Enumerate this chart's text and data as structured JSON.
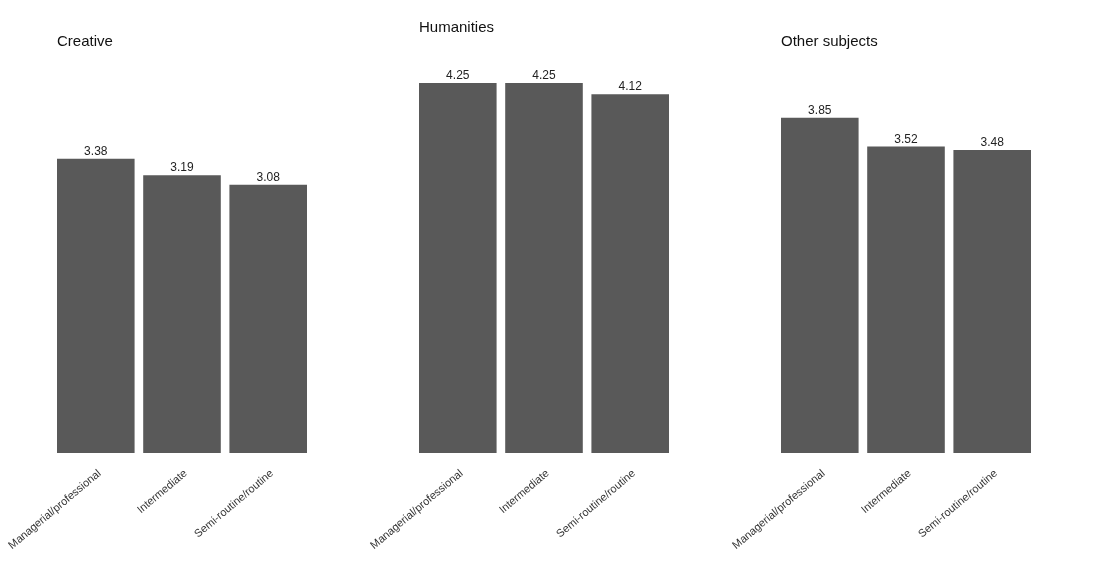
{
  "chart_data": [
    {
      "type": "bar",
      "title": "Creative",
      "categories": [
        "Managerial/professional",
        "Intermediate",
        "Semi-routine/routine"
      ],
      "values": [
        3.38,
        3.19,
        3.08
      ],
      "color": "#595959",
      "data_labels": true,
      "grid": false
    },
    {
      "type": "bar",
      "title": "Humanities",
      "categories": [
        "Managerial/professional",
        "Intermediate",
        "Semi-routine/routine"
      ],
      "values": [
        4.25,
        4.25,
        4.12
      ],
      "color": "#595959",
      "data_labels": true,
      "grid": false
    },
    {
      "type": "bar",
      "title": "Other subjects",
      "categories": [
        "Managerial/professional",
        "Intermediate",
        "Semi-routine/routine"
      ],
      "values": [
        3.85,
        3.52,
        3.48
      ],
      "color": "#595959",
      "data_labels": true,
      "grid": false
    }
  ]
}
